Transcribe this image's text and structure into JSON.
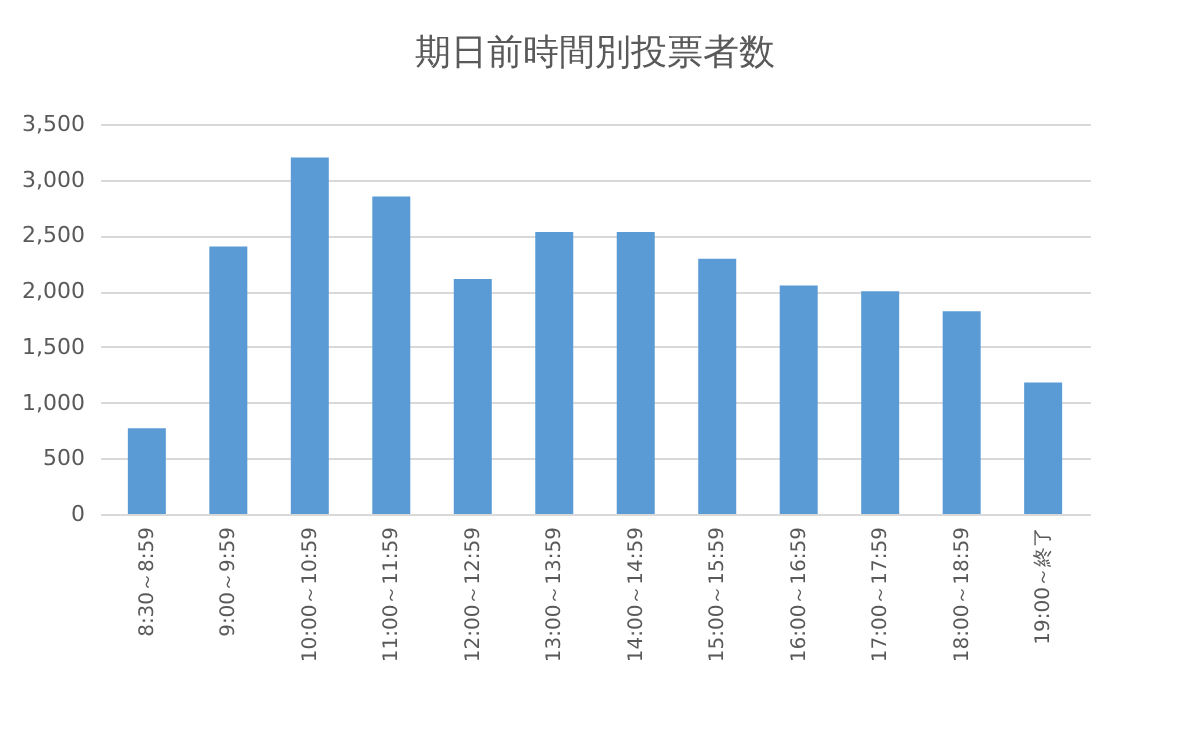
{
  "chart_data": {
    "type": "bar",
    "title": "期日前時間別投票者数",
    "categories": [
      "8:30～8:59",
      "9:00～9:59",
      "10:00～10:59",
      "11:00～11:59",
      "12:00～12:59",
      "13:00～13:59",
      "14:00～14:59",
      "15:00～15:59",
      "16:00～16:59",
      "17:00～17:59",
      "18:00～18:59",
      "19:00～終了"
    ],
    "values": [
      770,
      2400,
      3200,
      2850,
      2110,
      2530,
      2530,
      2290,
      2050,
      2000,
      1820,
      1180
    ],
    "color": "#5b9bd5",
    "ylim": [
      0,
      3500
    ],
    "yticks": [
      0,
      500,
      {
        "value": 1000,
        "label": "1,000"
      },
      {
        "value": 1500,
        "label": "1,500"
      },
      {
        "value": 2000,
        "label": "2,000"
      },
      {
        "value": 2500,
        "label": "2,500"
      },
      {
        "value": 3000,
        "label": "3,000"
      },
      {
        "value": 3500,
        "label": "3,500"
      }
    ],
    "grid": "y"
  }
}
